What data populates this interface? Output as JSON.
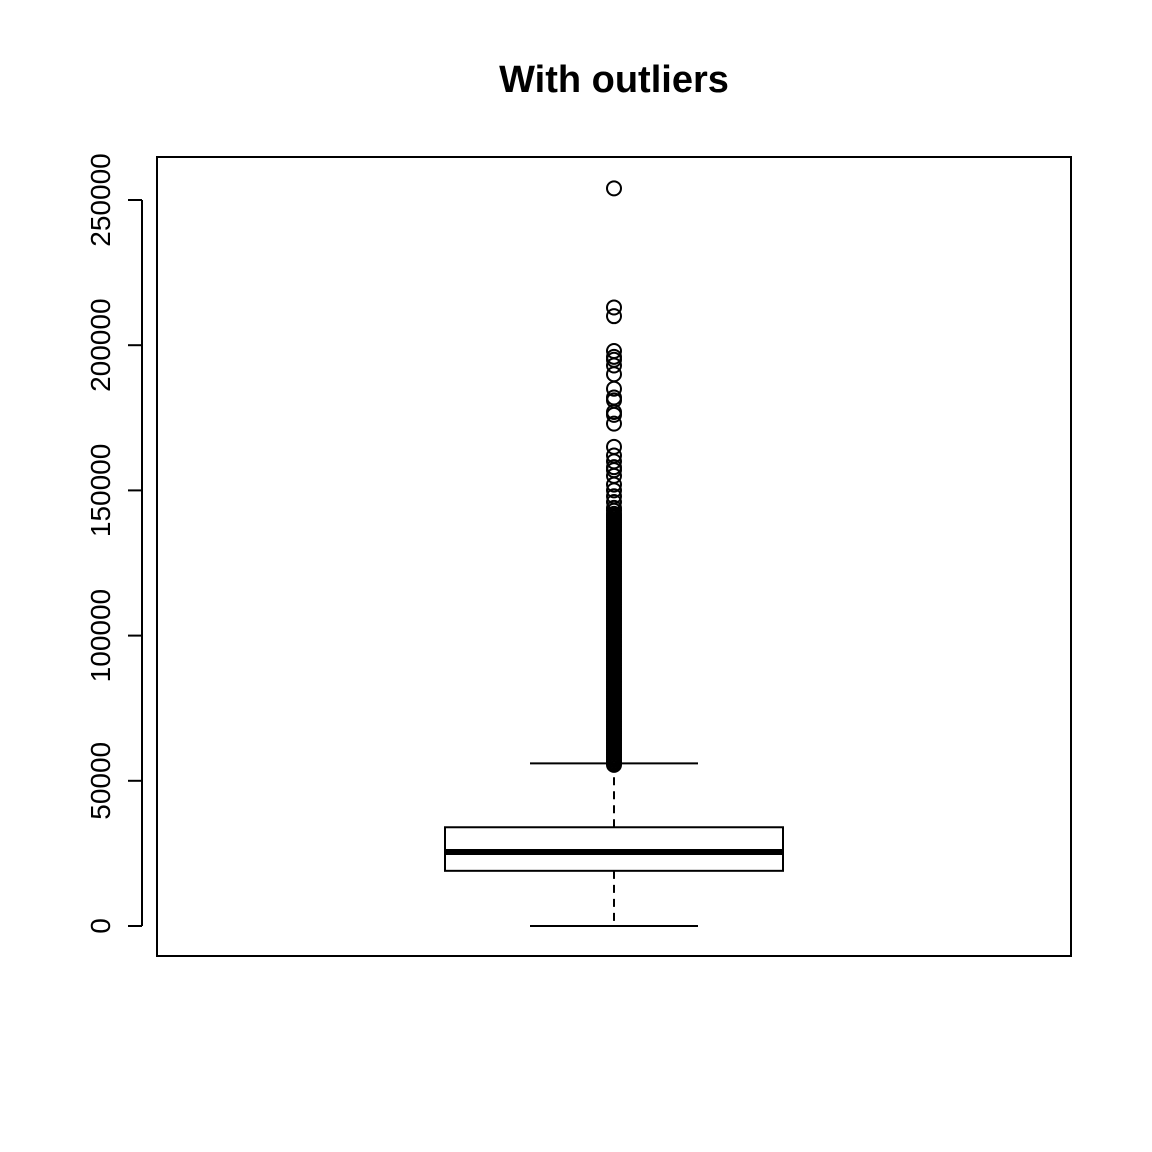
{
  "chart_data": {
    "type": "box",
    "title": "With outliers",
    "xlabel": "",
    "ylabel": "",
    "ylim": [
      -10000,
      264000
    ],
    "yticks": [
      0,
      50000,
      100000,
      150000,
      200000,
      250000
    ],
    "ytick_labels": [
      "0",
      "50000",
      "100000",
      "150000",
      "200000",
      "250000"
    ],
    "grid": false,
    "box": {
      "whisker_low": 0,
      "q1": 19000,
      "median": 25500,
      "q3": 34000,
      "whisker_high": 56000
    },
    "outliers_sparse": [
      254000,
      213000,
      210000,
      198000,
      196000,
      195000,
      193000,
      190000,
      185000,
      182000,
      181000,
      177000,
      176000,
      173000,
      165000,
      162000,
      160000,
      158000,
      157000,
      155000,
      152000,
      150000,
      148000,
      146000,
      144000,
      143000
    ],
    "outliers_dense_range": [
      55500,
      142000
    ],
    "colors": {
      "line": "#000000",
      "background": "#ffffff"
    }
  }
}
